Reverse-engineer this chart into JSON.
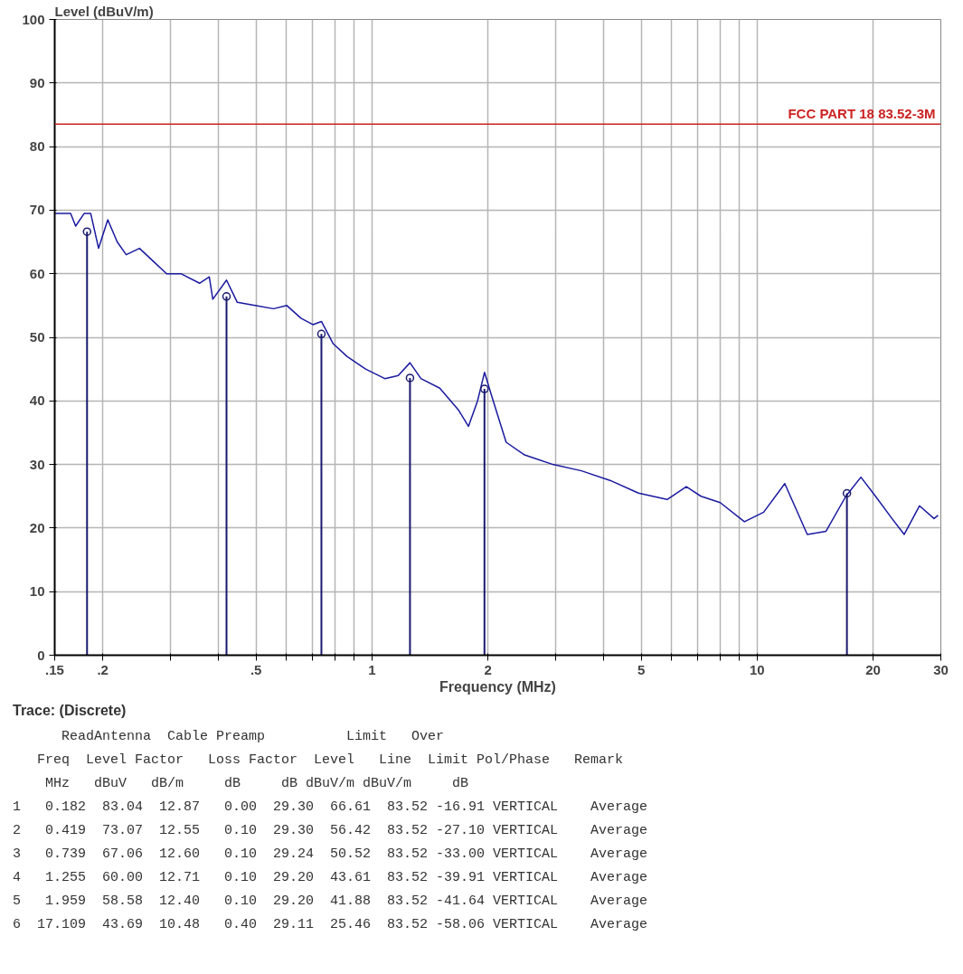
{
  "chart_data": {
    "type": "line",
    "xlabel": "Frequency (MHz)",
    "ylabel": "Level (dBuV/m)",
    "log": "x",
    "grid": true,
    "marker": "none",
    "line_style": "solid",
    "xlim": [
      0.15,
      30
    ],
    "ylim": [
      0,
      100
    ],
    "xticks": [
      {
        "value": 0.15,
        "label": ".15"
      },
      {
        "value": 0.2,
        "label": ".2"
      },
      {
        "value": 0.3,
        "label": null
      },
      {
        "value": 0.4,
        "label": null
      },
      {
        "value": 0.5,
        "label": ".5"
      },
      {
        "value": 0.6,
        "label": null
      },
      {
        "value": 0.7,
        "label": null
      },
      {
        "value": 0.8,
        "label": null
      },
      {
        "value": 0.9,
        "label": null
      },
      1,
      2,
      {
        "value": 3,
        "label": null
      },
      {
        "value": 4,
        "label": null
      },
      5,
      {
        "value": 6,
        "label": null
      },
      {
        "value": 7,
        "label": null
      },
      {
        "value": 8,
        "label": null
      },
      {
        "value": 9,
        "label": null
      },
      10,
      20,
      30
    ],
    "yticks": [
      0,
      10,
      20,
      30,
      40,
      50,
      60,
      70,
      80,
      90,
      100
    ],
    "ref_lines": [
      {
        "axis": "y",
        "value": 83.52,
        "label": "FCC PART 18 83.52-3M",
        "color": "#cc2222"
      }
    ],
    "series": [
      {
        "color": "#1a1aa0",
        "x": [
          0.15,
          0.165,
          0.17,
          0.179,
          0.186,
          0.195,
          0.206,
          0.218,
          0.23,
          0.249,
          0.27,
          0.293,
          0.319,
          0.357,
          0.378,
          0.386,
          0.419,
          0.447,
          0.497,
          0.555,
          0.601,
          0.654,
          0.702,
          0.739,
          0.793,
          0.861,
          0.963,
          1.08,
          1.17,
          1.255,
          1.34,
          1.5,
          1.68,
          1.78,
          1.88,
          1.96,
          2.04,
          2.23,
          2.49,
          2.95,
          3.5,
          4.15,
          4.92,
          5.84,
          6.55,
          7.15,
          8.02,
          9.27,
          10.4,
          11.8,
          13.5,
          15.1,
          17.0,
          18.6,
          20.3,
          22.4,
          24.1,
          26.4,
          28.8,
          29.5
        ],
        "values": [
          69.5,
          69.5,
          67.5,
          69.5,
          69.5,
          64,
          68.5,
          65,
          63,
          64,
          62,
          60,
          60,
          58.5,
          59.5,
          56,
          59,
          55.5,
          55,
          54.5,
          55,
          53,
          52,
          52.5,
          49,
          47,
          45,
          43.5,
          44,
          46,
          43.5,
          42,
          38.5,
          36,
          40,
          44.5,
          41,
          33.5,
          31.5,
          30,
          29,
          27.5,
          25.5,
          24.5,
          26.5,
          25,
          24,
          21,
          22.5,
          27,
          19,
          19.5,
          25,
          28,
          25,
          21.5,
          19,
          23.5,
          21.5,
          22
        ]
      },
      {
        "type": "lollipop",
        "color": "#1a1a6e",
        "marker": "circle",
        "x": [
          0.182,
          0.419,
          0.739,
          1.255,
          1.959,
          17.109
        ],
        "values": [
          66.61,
          56.42,
          50.52,
          43.61,
          41.88,
          25.46
        ]
      }
    ],
    "annotations": [
      "Trace: (Discrete)",
      "      ReadAntenna  Cable Preamp          Limit   Over",
      "   Freq  Level Factor   Loss Factor  Level   Line  Limit Pol/Phase   Remark",
      "    MHz   dBuV   dB/m     dB     dB dBuV/m dBuV/m     dB",
      "1   0.182  83.04  12.87   0.00  29.30  66.61  83.52 -16.91 VERTICAL    Average",
      "2   0.419  73.07  12.55   0.10  29.30  56.42  83.52 -27.10 VERTICAL    Average",
      "3   0.739  67.06  12.60   0.10  29.24  50.52  83.52 -33.00 VERTICAL    Average",
      "4   1.255  60.00  12.71   0.10  29.20  43.61  83.52 -39.91 VERTICAL    Average",
      "5   1.959  58.58  12.40   0.10  29.20  41.88  83.52 -41.64 VERTICAL    Average",
      "6  17.109  43.69  10.48   0.40  29.11  25.46  83.52 -58.06 VERTICAL    Average"
    ]
  }
}
